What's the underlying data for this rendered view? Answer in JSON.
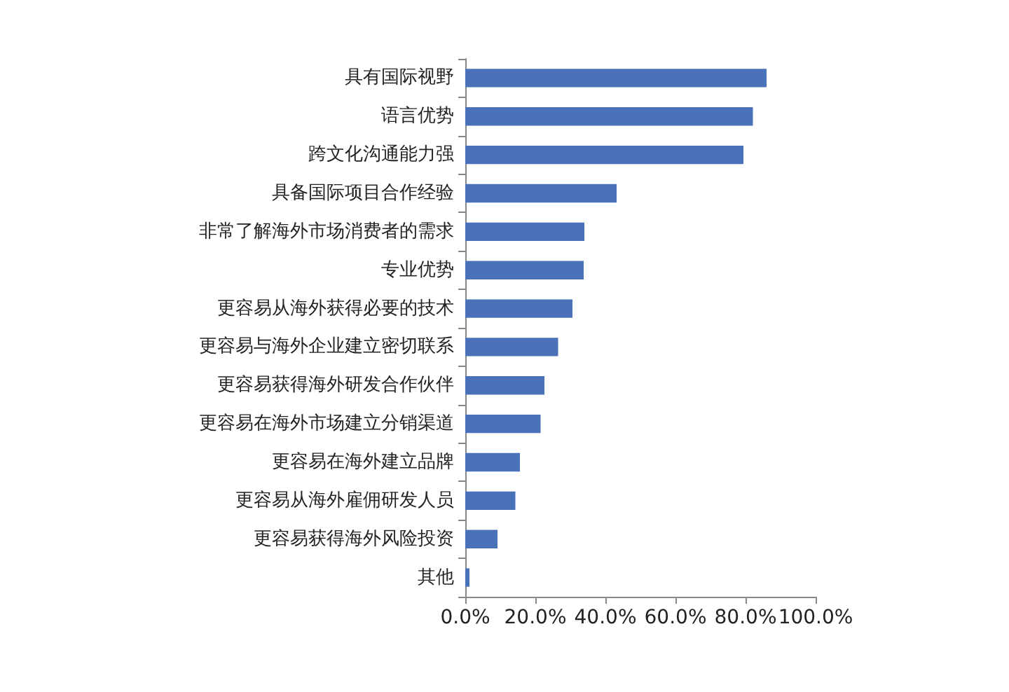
{
  "chart_data": {
    "type": "bar",
    "orientation": "horizontal",
    "categories": [
      "具有国际视野",
      "语言优势",
      "跨文化沟通能力强",
      "具备国际项目合作经验",
      "非常了解海外市场消费者的需求",
      "专业优势",
      "更容易从海外获得必要的技术",
      "更容易与海外企业建立密切联系",
      "更容易获得海外研发合作伙伴",
      "更容易在海外市场建立分销渠道",
      "更容易在海外建立品牌",
      "更容易从海外雇佣研发人员",
      "更容易获得海外风险投资",
      "其他"
    ],
    "values": [
      86.0,
      82.1,
      79.4,
      43.2,
      34.0,
      33.8,
      30.6,
      26.5,
      22.6,
      21.5,
      15.6,
      14.3,
      9.2,
      1.2
    ],
    "color": "#4a72b8",
    "xlim": [
      0,
      100
    ],
    "xticks": [
      {
        "value": 0,
        "label": "0.0%"
      },
      {
        "value": 20,
        "label": "20.0%"
      },
      {
        "value": 40,
        "label": "40.0%"
      },
      {
        "value": 60,
        "label": "60.0%"
      },
      {
        "value": 80,
        "label": "80.0%"
      },
      {
        "value": 100,
        "label": "100.0%"
      }
    ],
    "grid": false
  }
}
